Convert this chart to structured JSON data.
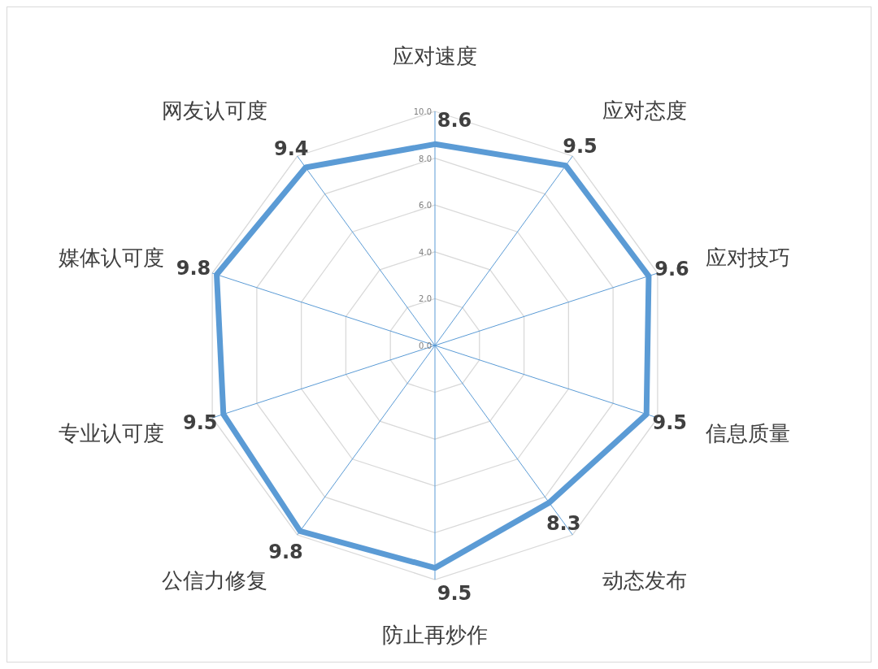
{
  "chart_data": {
    "type": "radar",
    "categories": [
      "应对速度",
      "应对态度",
      "应对技巧",
      "信息质量",
      "动态发布",
      "防止再炒作",
      "公信力修复",
      "专业认可度",
      "媒体认可度",
      "网友认可度"
    ],
    "series": [
      {
        "color": "#5b9bd5",
        "values": [
          8.6,
          9.5,
          9.6,
          9.5,
          8.3,
          9.5,
          9.8,
          9.5,
          9.8,
          9.4
        ]
      }
    ],
    "ylim": [
      0,
      10
    ],
    "yticks": [
      {
        "value": 0,
        "label": "0.0"
      },
      {
        "value": 2,
        "label": "2.0"
      },
      {
        "value": 4,
        "label": "4.0"
      },
      {
        "value": 6,
        "label": "6.0"
      },
      {
        "value": 8,
        "label": "8.0"
      },
      {
        "value": 10,
        "label": "10.0"
      }
    ],
    "grid": true,
    "data_labels": true
  }
}
